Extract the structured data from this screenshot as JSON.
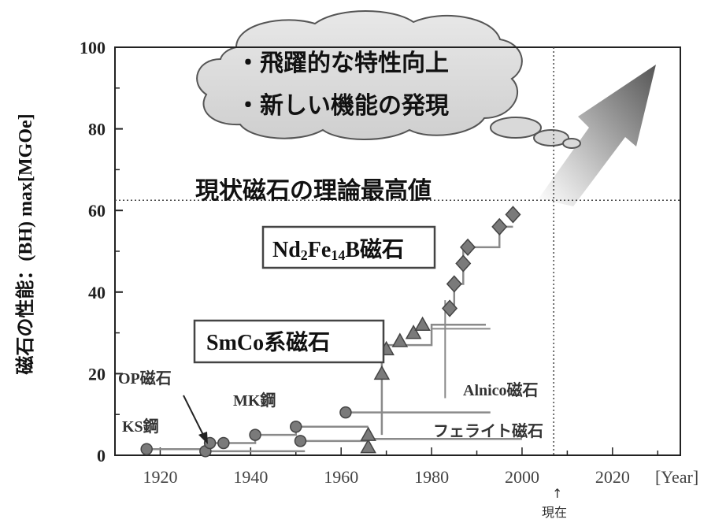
{
  "chart_data": {
    "type": "scatter",
    "title": "",
    "xlabel": "[Year]",
    "ylabel": "磁石の性能：(BH) max[MGOe]",
    "xlim": [
      1910,
      2035
    ],
    "ylim": [
      0,
      100
    ],
    "x_ticks": [
      1920,
      1940,
      1960,
      1980,
      2000,
      2020
    ],
    "y_ticks": [
      0,
      20,
      40,
      60,
      80,
      100
    ],
    "grid": false,
    "series": [
      {
        "name": "KS鋼",
        "marker": "circle",
        "points": [
          {
            "x": 1917,
            "y": 1.5
          }
        ]
      },
      {
        "name": "OP磁石",
        "marker": "circle",
        "points": [
          {
            "x": 1930,
            "y": 1
          }
        ]
      },
      {
        "name": "MK鋼",
        "marker": "circle",
        "points": [
          {
            "x": 1931,
            "y": 3
          },
          {
            "x": 1934,
            "y": 3
          },
          {
            "x": 1941,
            "y": 5
          },
          {
            "x": 1950,
            "y": 7
          },
          {
            "x": 1961,
            "y": 10.5
          }
        ]
      },
      {
        "name": "フェライト磁石",
        "marker": "circle",
        "points": [
          {
            "x": 1951,
            "y": 3.5
          }
        ]
      },
      {
        "name": "Alnico磁石",
        "marker": "triangle",
        "points": [
          {
            "x": 1966,
            "y": 2
          },
          {
            "x": 1966,
            "y": 5
          },
          {
            "x": 1969,
            "y": 20
          },
          {
            "x": 1970,
            "y": 26
          },
          {
            "x": 1973,
            "y": 28
          },
          {
            "x": 1976,
            "y": 30
          },
          {
            "x": 1978,
            "y": 32
          }
        ]
      },
      {
        "name": "Nd₂Fe₁₄B磁石",
        "marker": "diamond",
        "points": [
          {
            "x": 1984,
            "y": 36
          },
          {
            "x": 1985,
            "y": 42
          },
          {
            "x": 1987,
            "y": 47
          },
          {
            "x": 1988,
            "y": 51
          },
          {
            "x": 1995,
            "y": 56
          },
          {
            "x": 1998,
            "y": 59
          }
        ]
      }
    ],
    "step_lines": [
      {
        "points": [
          [
            1917,
            1.5
          ],
          [
            1930,
            1.5
          ],
          [
            1930,
            1
          ],
          [
            1952,
            1
          ]
        ]
      },
      {
        "points": [
          [
            1931,
            3
          ],
          [
            1941,
            3
          ],
          [
            1941,
            5
          ],
          [
            1950,
            5
          ],
          [
            1950,
            7
          ],
          [
            1966,
            7
          ]
        ]
      },
      {
        "points": [
          [
            1951,
            3.5
          ],
          [
            1966,
            3.5
          ],
          [
            1966,
            4
          ],
          [
            2000,
            4
          ]
        ]
      },
      {
        "points": [
          [
            1961,
            10.5
          ],
          [
            1993,
            10.5
          ]
        ]
      },
      {
        "points": [
          [
            1969,
            5
          ],
          [
            1969,
            27
          ],
          [
            1980,
            27
          ],
          [
            1980,
            32
          ],
          [
            1992,
            32
          ]
        ]
      },
      {
        "points": [
          [
            1984,
            36
          ],
          [
            1985,
            36
          ],
          [
            1985,
            42
          ],
          [
            1987,
            42
          ],
          [
            1987,
            51
          ],
          [
            1995,
            51
          ],
          [
            1995,
            56
          ],
          [
            1998,
            56
          ]
        ]
      }
    ],
    "reference_lines": {
      "theoretical_max_y": 62.5,
      "current_year_x": 2007
    },
    "alnico_cross": {
      "x": 1983,
      "y_from": 14,
      "y_to": 32,
      "x_to": 1993,
      "y": 31
    }
  },
  "labels": {
    "ks": "KS鋼",
    "op": "OP磁石",
    "mk": "MK鋼",
    "alnico": "Alnico磁石",
    "ferrite": "フェライト磁石",
    "ndfeb_prefix": "Nd",
    "ndfeb_sub1": "2",
    "ndfeb_mid": "Fe",
    "ndfeb_sub2": "14",
    "ndfeb_suffix": "B磁石",
    "smco": "SmCo系磁石",
    "theoretical_max": "現状磁石の理論最高値",
    "current": "現在",
    "current_arrow": "↑",
    "x_unit": "[Year]",
    "y_axis": "磁石の性能：(BH) max[MGOe]",
    "bubble_line1": "・飛躍的な特性向上",
    "bubble_line2": "・新しい機能の発現"
  },
  "colors": {
    "marker_fill": "#7a7a7a",
    "line": "#8a8a8a",
    "axis": "#222222",
    "box_border": "#444444",
    "arrow_dark": "#555555",
    "arrow_light": "#eeeeee",
    "cloud_fill": "#d9d9d9"
  }
}
